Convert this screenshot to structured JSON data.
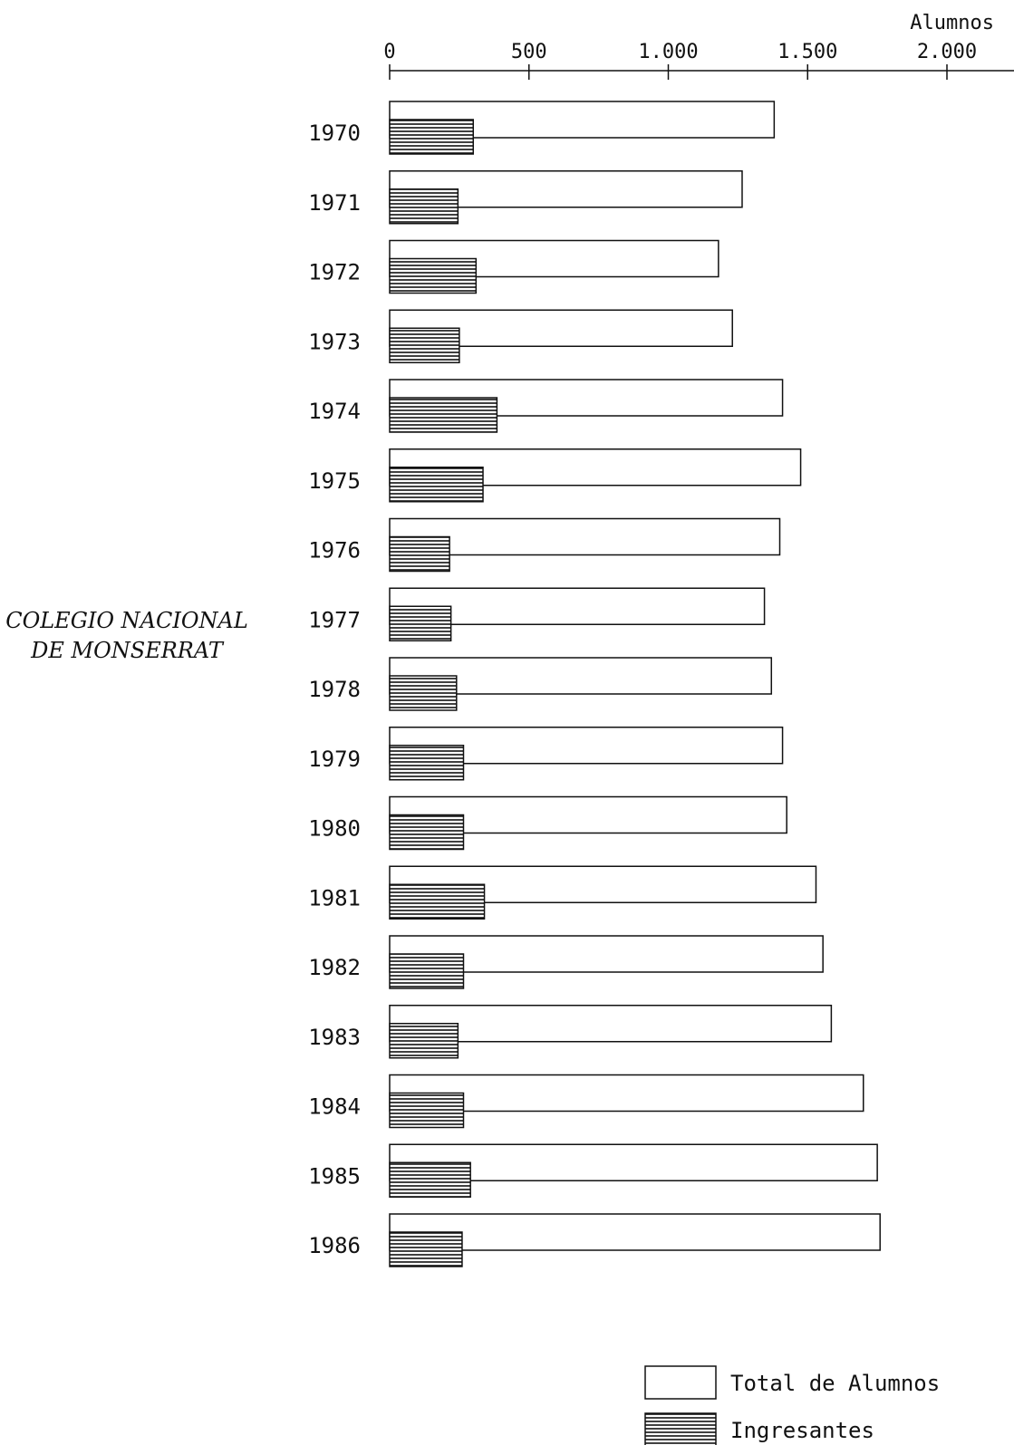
{
  "chart_data": {
    "type": "bar",
    "orientation": "horizontal",
    "title": "COLEGIO NACIONAL DE MONSERRAT",
    "title_lines": [
      "COLEGIO NACIONAL",
      "DE MONSERRAT"
    ],
    "axis_label": "Alumnos",
    "ticks": [
      {
        "value": 0,
        "label": "0"
      },
      {
        "value": 500,
        "label": "500"
      },
      {
        "value": 1000,
        "label": "1.000"
      },
      {
        "value": 1500,
        "label": "1.500"
      },
      {
        "value": 2000,
        "label": "2.000"
      }
    ],
    "xlim": [
      0,
      2000
    ],
    "categories": [
      "1970",
      "1971",
      "1972",
      "1973",
      "1974",
      "1975",
      "1976",
      "1977",
      "1978",
      "1979",
      "1980",
      "1981",
      "1982",
      "1983",
      "1984",
      "1985",
      "1986"
    ],
    "series": [
      {
        "name": "Total de Alumnos",
        "style": "outline",
        "values": [
          1380,
          1265,
          1180,
          1230,
          1410,
          1475,
          1400,
          1345,
          1370,
          1410,
          1425,
          1530,
          1555,
          1585,
          1700,
          1750,
          1760
        ]
      },
      {
        "name": "Ingresantes",
        "style": "hatched",
        "values": [
          300,
          245,
          310,
          250,
          385,
          335,
          215,
          220,
          240,
          265,
          265,
          340,
          265,
          245,
          265,
          290,
          260
        ]
      }
    ],
    "legend_position": "bottom-right",
    "grid": false
  }
}
